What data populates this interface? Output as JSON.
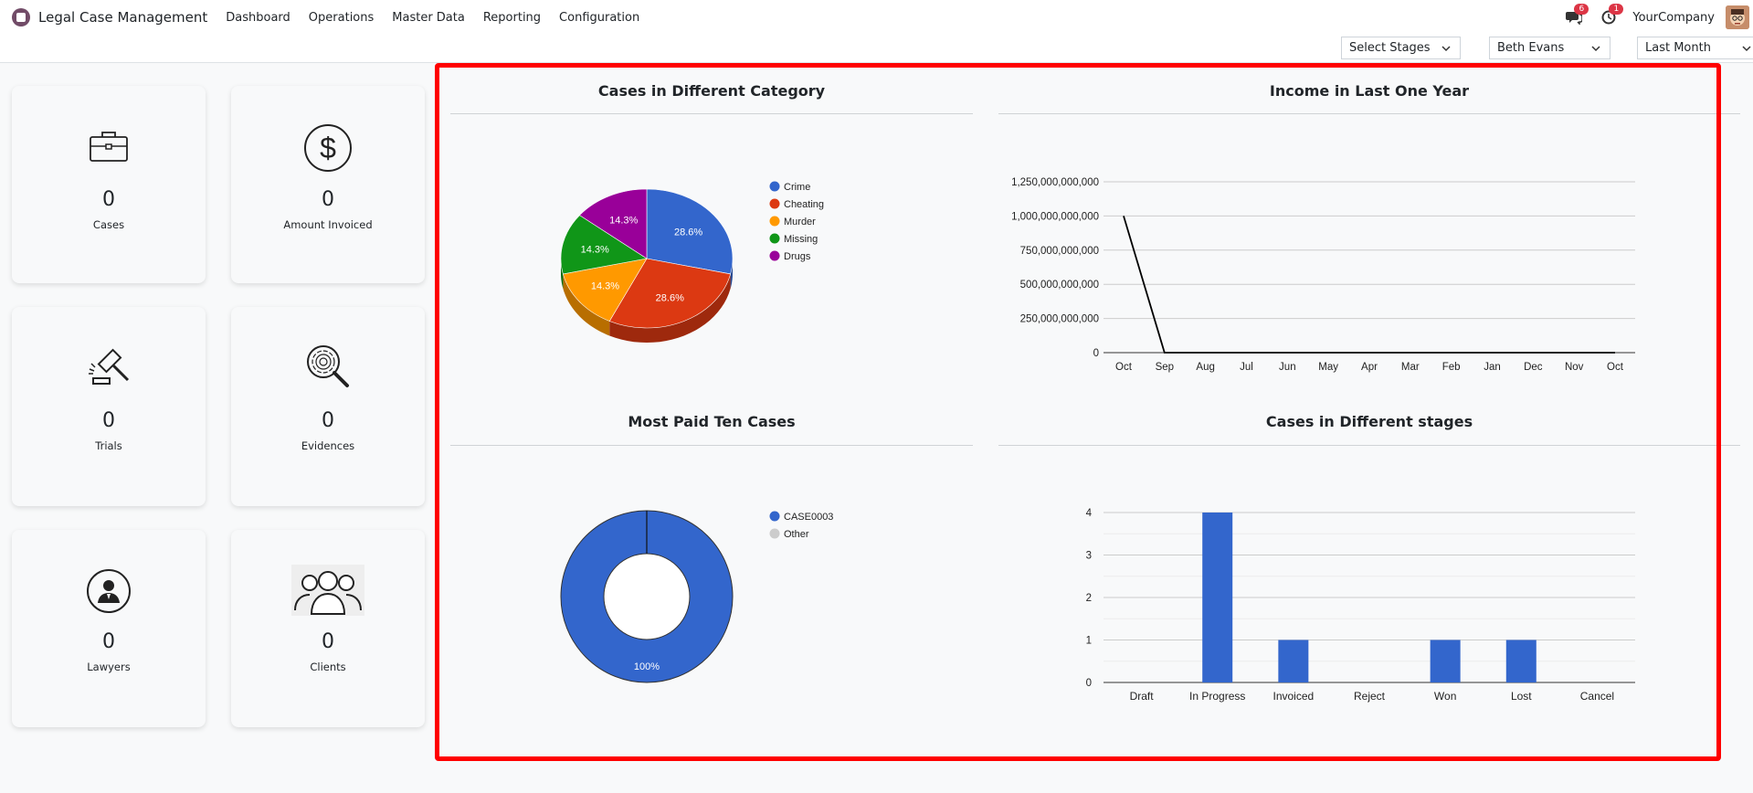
{
  "nav": {
    "app_title": "Legal Case Management",
    "menu": [
      "Dashboard",
      "Operations",
      "Master Data",
      "Reporting",
      "Configuration"
    ],
    "messages_badge": "6",
    "activity_badge": "1",
    "company": "YourCompany"
  },
  "filters": {
    "stages": "Select Stages",
    "user": "Beth Evans",
    "period": "Last Month"
  },
  "kpis": [
    {
      "value": "0",
      "label": "Cases",
      "icon": "briefcase-icon"
    },
    {
      "value": "0",
      "label": "Amount Invoiced",
      "icon": "dollar-icon"
    },
    {
      "value": "0",
      "label": "Trials",
      "icon": "gavel-icon"
    },
    {
      "value": "0",
      "label": "Evidences",
      "icon": "fingerprint-search-icon"
    },
    {
      "value": "0",
      "label": "Lawyers",
      "icon": "lawyer-icon"
    },
    {
      "value": "0",
      "label": "Clients",
      "icon": "clients-icon"
    }
  ],
  "panels": {
    "category_title": "Cases in Different Category",
    "income_title": "Income in Last One Year",
    "paid_title": "Most Paid Ten Cases",
    "stages_title": "Cases in Different stages"
  },
  "colors": {
    "blue": "#3366cc",
    "red": "#dc3912",
    "orange": "#ff9900",
    "green": "#109618",
    "purple": "#990099",
    "gray": "#cccccc"
  },
  "chart_data": [
    {
      "type": "pie",
      "title": "Cases in Different Category",
      "categories": [
        "Crime",
        "Cheating",
        "Murder",
        "Missing",
        "Drugs"
      ],
      "values": [
        28.6,
        28.6,
        14.3,
        14.3,
        14.3
      ],
      "labels": [
        "28.6%",
        "28.6%",
        "14.3%",
        "14.3%",
        "14.3%"
      ],
      "legend": "right",
      "style": "3d"
    },
    {
      "type": "line",
      "title": "Income in Last One Year",
      "categories": [
        "Oct",
        "Sep",
        "Aug",
        "Jul",
        "Jun",
        "May",
        "Apr",
        "Mar",
        "Feb",
        "Jan",
        "Dec",
        "Nov",
        "Oct"
      ],
      "values": [
        1000000000000,
        0,
        0,
        0,
        0,
        0,
        0,
        0,
        0,
        0,
        0,
        0,
        0
      ],
      "yticks": [
        "0",
        "250,000,000,000",
        "500,000,000,000",
        "750,000,000,000",
        "1,000,000,000,000",
        "1,250,000,000,000"
      ],
      "ylim": [
        0,
        1250000000000
      ],
      "grid": true
    },
    {
      "type": "pie",
      "title": "Most Paid Ten Cases",
      "categories": [
        "CASE0003",
        "Other"
      ],
      "values": [
        100,
        0
      ],
      "labels": [
        "100%"
      ],
      "legend": "right",
      "style": "donut"
    },
    {
      "type": "bar",
      "title": "Cases in Different stages",
      "categories": [
        "Draft",
        "In Progress",
        "Invoiced",
        "Reject",
        "Won",
        "Lost",
        "Cancel"
      ],
      "values": [
        0,
        4,
        1,
        0,
        1,
        1,
        0
      ],
      "yticks": [
        "0",
        "1",
        "2",
        "3",
        "4"
      ],
      "ylim": [
        0,
        4
      ],
      "grid": true
    }
  ]
}
